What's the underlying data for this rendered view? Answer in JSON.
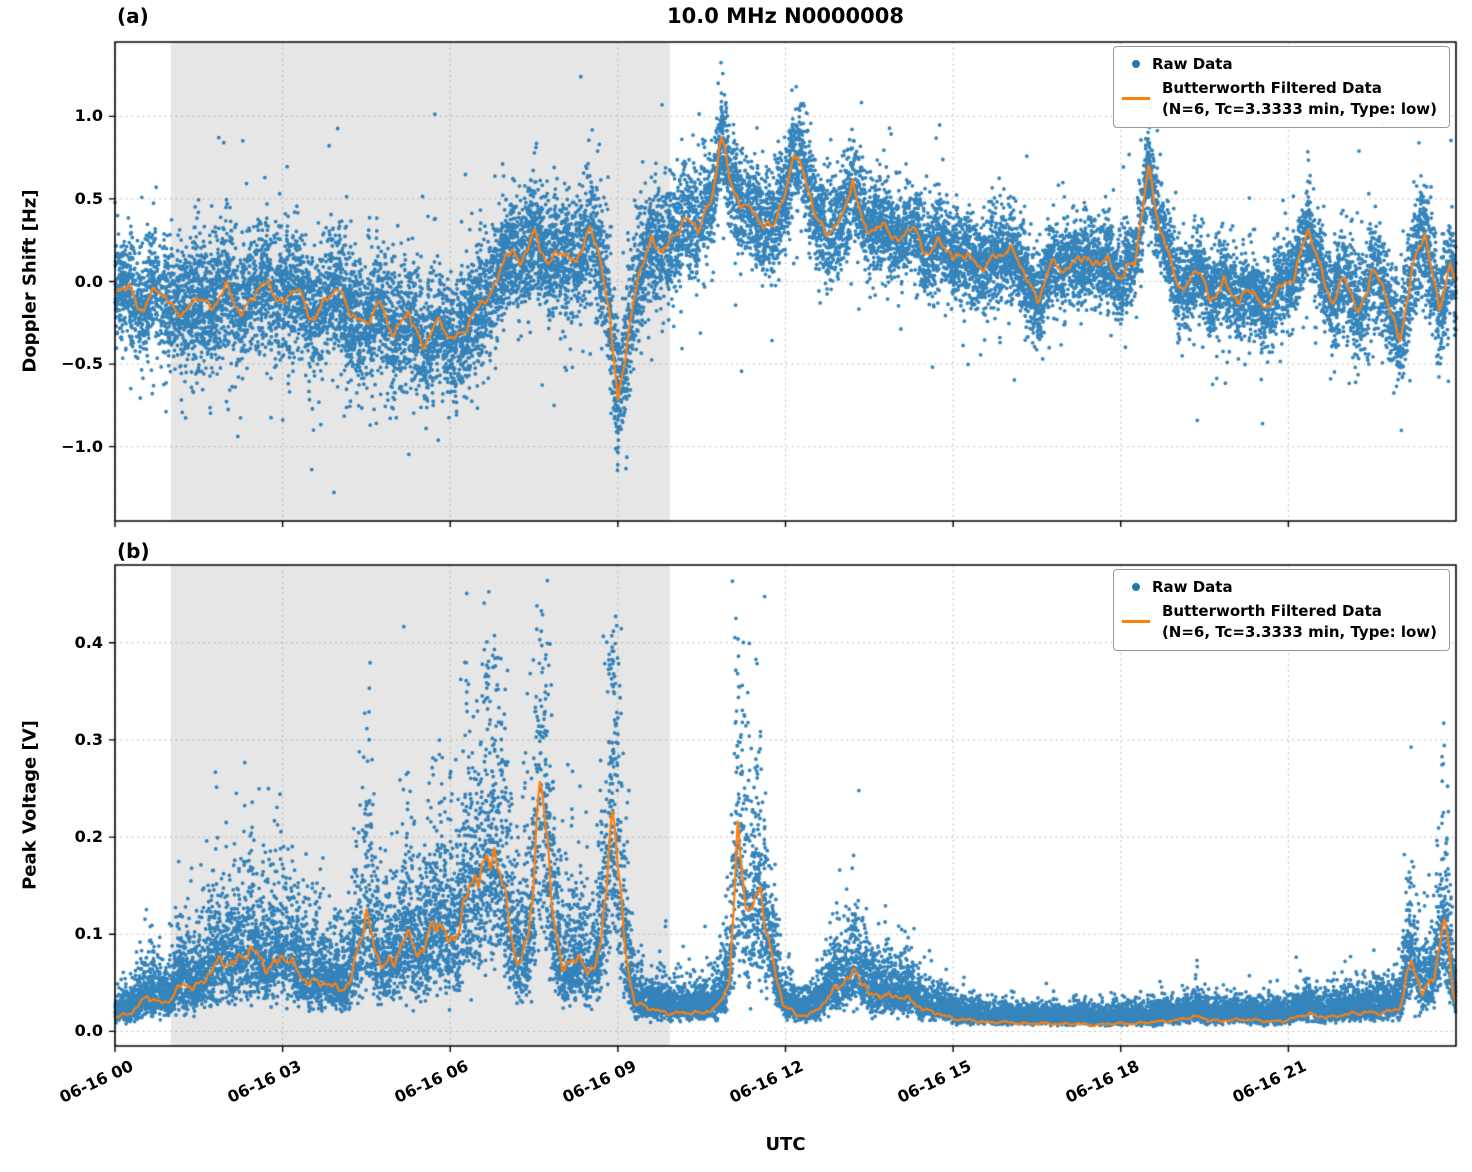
{
  "figure": {
    "title": "10.0 MHz N0000008",
    "xlabel": "UTC",
    "colors": {
      "raw": "#1f77b4",
      "filtered": "#ff7f0e",
      "shade": "#e6e6e6",
      "grid": "#9e9e9e",
      "axis": "#000000"
    }
  },
  "chart_data": [
    {
      "panel_label": "(a)",
      "type": "scatter",
      "ylabel": "Doppler Shift [Hz]",
      "ylim": [
        -1.45,
        1.45
      ],
      "yticks": [
        -1.0,
        -0.5,
        0.0,
        0.5,
        1.0
      ],
      "ytick_labels": [
        "−1.0",
        "−0.5",
        "0.0",
        "0.5",
        "1.0"
      ],
      "xlim_hours": [
        0,
        24
      ],
      "xticks_hours": [
        0,
        3,
        6,
        9,
        12,
        15,
        18,
        21
      ],
      "xtick_labels": [
        "06-16 00",
        "06-16 03",
        "06-16 06",
        "06-16 09",
        "06-16 12",
        "06-16 15",
        "06-16 18",
        "06-16 21"
      ],
      "grid": "dashed",
      "shade_hours": [
        1.0,
        9.93
      ],
      "legend": {
        "raw": "Raw Data",
        "filtered": "Butterworth Filtered Data",
        "filtered_params": "(N=6, Tc=3.3333 min, Type: low)"
      },
      "filtered_points": [
        [
          0,
          -0.08
        ],
        [
          0.25,
          -0.02
        ],
        [
          0.5,
          -0.18
        ],
        [
          0.75,
          -0.05
        ],
        [
          1,
          -0.12
        ],
        [
          1.25,
          -0.22
        ],
        [
          1.5,
          -0.08
        ],
        [
          1.75,
          -0.15
        ],
        [
          2,
          -0.05
        ],
        [
          2.25,
          -0.18
        ],
        [
          2.5,
          -0.08
        ],
        [
          2.75,
          -0.02
        ],
        [
          3,
          -0.12
        ],
        [
          3.25,
          -0.05
        ],
        [
          3.5,
          -0.22
        ],
        [
          3.75,
          -0.12
        ],
        [
          4,
          -0.06
        ],
        [
          4.25,
          -0.18
        ],
        [
          4.5,
          -0.28
        ],
        [
          4.75,
          -0.12
        ],
        [
          5,
          -0.32
        ],
        [
          5.25,
          -0.2
        ],
        [
          5.5,
          -0.38
        ],
        [
          5.75,
          -0.25
        ],
        [
          6,
          -0.35
        ],
        [
          6.25,
          -0.28
        ],
        [
          6.5,
          -0.18
        ],
        [
          6.75,
          -0.05
        ],
        [
          7,
          0.18
        ],
        [
          7.25,
          0.1
        ],
        [
          7.5,
          0.32
        ],
        [
          7.75,
          0.08
        ],
        [
          8,
          0.2
        ],
        [
          8.25,
          0.12
        ],
        [
          8.5,
          0.3
        ],
        [
          8.7,
          0.15
        ],
        [
          8.85,
          -0.2
        ],
        [
          9,
          -0.72
        ],
        [
          9.15,
          -0.45
        ],
        [
          9.35,
          0.05
        ],
        [
          9.6,
          0.25
        ],
        [
          9.8,
          0.15
        ],
        [
          10,
          0.3
        ],
        [
          10.2,
          0.38
        ],
        [
          10.45,
          0.3
        ],
        [
          10.7,
          0.55
        ],
        [
          10.85,
          0.9
        ],
        [
          11,
          0.6
        ],
        [
          11.2,
          0.45
        ],
        [
          11.4,
          0.48
        ],
        [
          11.6,
          0.3
        ],
        [
          11.8,
          0.35
        ],
        [
          12,
          0.55
        ],
        [
          12.15,
          0.8
        ],
        [
          12.35,
          0.6
        ],
        [
          12.55,
          0.4
        ],
        [
          12.75,
          0.3
        ],
        [
          13,
          0.35
        ],
        [
          13.2,
          0.62
        ],
        [
          13.4,
          0.35
        ],
        [
          13.6,
          0.28
        ],
        [
          13.8,
          0.35
        ],
        [
          14,
          0.25
        ],
        [
          14.25,
          0.32
        ],
        [
          14.5,
          0.18
        ],
        [
          14.75,
          0.25
        ],
        [
          15,
          0.12
        ],
        [
          15.25,
          0.2
        ],
        [
          15.5,
          0.05
        ],
        [
          15.75,
          0.15
        ],
        [
          16,
          0.22
        ],
        [
          16.25,
          0.05
        ],
        [
          16.5,
          -0.1
        ],
        [
          16.75,
          0.1
        ],
        [
          17,
          0.05
        ],
        [
          17.25,
          0.18
        ],
        [
          17.5,
          0.08
        ],
        [
          17.75,
          0.15
        ],
        [
          18,
          0.02
        ],
        [
          18.25,
          0.1
        ],
        [
          18.5,
          0.72
        ],
        [
          18.7,
          0.3
        ],
        [
          18.9,
          0.1
        ],
        [
          19.1,
          -0.05
        ],
        [
          19.35,
          0.08
        ],
        [
          19.6,
          -0.12
        ],
        [
          19.85,
          0.02
        ],
        [
          20.1,
          -0.15
        ],
        [
          20.35,
          -0.02
        ],
        [
          20.6,
          -0.18
        ],
        [
          20.85,
          -0.05
        ],
        [
          21.1,
          0.05
        ],
        [
          21.35,
          0.3
        ],
        [
          21.55,
          0.1
        ],
        [
          21.8,
          -0.12
        ],
        [
          22,
          0.02
        ],
        [
          22.25,
          -0.2
        ],
        [
          22.5,
          0.08
        ],
        [
          22.75,
          -0.1
        ],
        [
          23,
          -0.35
        ],
        [
          23.2,
          0.05
        ],
        [
          23.45,
          0.28
        ],
        [
          23.7,
          -0.15
        ],
        [
          23.9,
          0.1
        ],
        [
          24,
          -0.05
        ]
      ],
      "raw_scatter_sigma": [
        [
          0,
          0.15
        ],
        [
          1,
          0.18
        ],
        [
          2,
          0.2
        ],
        [
          3,
          0.19
        ],
        [
          4,
          0.18
        ],
        [
          5,
          0.19
        ],
        [
          6,
          0.17
        ],
        [
          7,
          0.16
        ],
        [
          8,
          0.17
        ],
        [
          9,
          0.2
        ],
        [
          10,
          0.16
        ],
        [
          11,
          0.16
        ],
        [
          12,
          0.15
        ],
        [
          13,
          0.15
        ],
        [
          14,
          0.13
        ],
        [
          15,
          0.13
        ],
        [
          16,
          0.14
        ],
        [
          17,
          0.12
        ],
        [
          18,
          0.13
        ],
        [
          19,
          0.12
        ],
        [
          20,
          0.12
        ],
        [
          21,
          0.13
        ],
        [
          22,
          0.14
        ],
        [
          23,
          0.17
        ],
        [
          24,
          0.15
        ]
      ]
    },
    {
      "panel_label": "(b)",
      "type": "scatter",
      "ylabel": "Peak Voltage [V]",
      "ylim": [
        -0.015,
        0.48
      ],
      "yticks": [
        0.0,
        0.1,
        0.2,
        0.3,
        0.4
      ],
      "ytick_labels": [
        "0.0",
        "0.1",
        "0.2",
        "0.3",
        "0.4"
      ],
      "xlim_hours": [
        0,
        24
      ],
      "xticks_hours": [
        0,
        3,
        6,
        9,
        12,
        15,
        18,
        21
      ],
      "xtick_labels": [
        "06-16 00",
        "06-16 03",
        "06-16 06",
        "06-16 09",
        "06-16 12",
        "06-16 15",
        "06-16 18",
        "06-16 21"
      ],
      "grid": "dashed",
      "shade_hours": [
        1.0,
        9.93
      ],
      "legend": {
        "raw": "Raw Data",
        "filtered": "Butterworth Filtered Data",
        "filtered_params": "(N=6, Tc=3.3333 min, Type: low)"
      },
      "filtered_points": [
        [
          0,
          0.015
        ],
        [
          0.3,
          0.02
        ],
        [
          0.6,
          0.035
        ],
        [
          0.9,
          0.03
        ],
        [
          1.2,
          0.045
        ],
        [
          1.5,
          0.05
        ],
        [
          1.8,
          0.065
        ],
        [
          2.1,
          0.075
        ],
        [
          2.4,
          0.08
        ],
        [
          2.7,
          0.07
        ],
        [
          3,
          0.075
        ],
        [
          3.3,
          0.06
        ],
        [
          3.6,
          0.05
        ],
        [
          3.9,
          0.045
        ],
        [
          4.2,
          0.05
        ],
        [
          4.5,
          0.115
        ],
        [
          4.7,
          0.08
        ],
        [
          5,
          0.065
        ],
        [
          5.2,
          0.1
        ],
        [
          5.5,
          0.085
        ],
        [
          5.8,
          0.11
        ],
        [
          6,
          0.095
        ],
        [
          6.3,
          0.13
        ],
        [
          6.55,
          0.17
        ],
        [
          6.8,
          0.195
        ],
        [
          7,
          0.12
        ],
        [
          7.2,
          0.07
        ],
        [
          7.4,
          0.1
        ],
        [
          7.6,
          0.245
        ],
        [
          7.8,
          0.15
        ],
        [
          8,
          0.065
        ],
        [
          8.2,
          0.075
        ],
        [
          8.45,
          0.06
        ],
        [
          8.7,
          0.09
        ],
        [
          8.9,
          0.225
        ],
        [
          9.1,
          0.1
        ],
        [
          9.3,
          0.03
        ],
        [
          9.6,
          0.022
        ],
        [
          9.9,
          0.02
        ],
        [
          10.2,
          0.018
        ],
        [
          10.5,
          0.02
        ],
        [
          10.8,
          0.025
        ],
        [
          11,
          0.05
        ],
        [
          11.15,
          0.215
        ],
        [
          11.35,
          0.12
        ],
        [
          11.55,
          0.135
        ],
        [
          11.75,
          0.08
        ],
        [
          11.95,
          0.03
        ],
        [
          12.2,
          0.015
        ],
        [
          12.5,
          0.02
        ],
        [
          12.8,
          0.035
        ],
        [
          13,
          0.05
        ],
        [
          13.25,
          0.065
        ],
        [
          13.5,
          0.035
        ],
        [
          13.75,
          0.04
        ],
        [
          14,
          0.035
        ],
        [
          14.3,
          0.03
        ],
        [
          14.6,
          0.02
        ],
        [
          14.9,
          0.015
        ],
        [
          15.2,
          0.012
        ],
        [
          15.5,
          0.01
        ],
        [
          16,
          0.009
        ],
        [
          16.5,
          0.008
        ],
        [
          17,
          0.008
        ],
        [
          17.5,
          0.007
        ],
        [
          18,
          0.008
        ],
        [
          18.5,
          0.009
        ],
        [
          19,
          0.012
        ],
        [
          19.4,
          0.015
        ],
        [
          19.8,
          0.01
        ],
        [
          20.2,
          0.013
        ],
        [
          20.6,
          0.01
        ],
        [
          21,
          0.012
        ],
        [
          21.4,
          0.018
        ],
        [
          21.8,
          0.014
        ],
        [
          22.2,
          0.02
        ],
        [
          22.6,
          0.018
        ],
        [
          23,
          0.025
        ],
        [
          23.2,
          0.07
        ],
        [
          23.4,
          0.04
        ],
        [
          23.6,
          0.06
        ],
        [
          23.8,
          0.11
        ],
        [
          23.95,
          0.04
        ],
        [
          24,
          0.03
        ]
      ],
      "raw_noise": {
        "multiplicative_sigma": 0.45,
        "additive_sigma": 0.007
      }
    }
  ]
}
